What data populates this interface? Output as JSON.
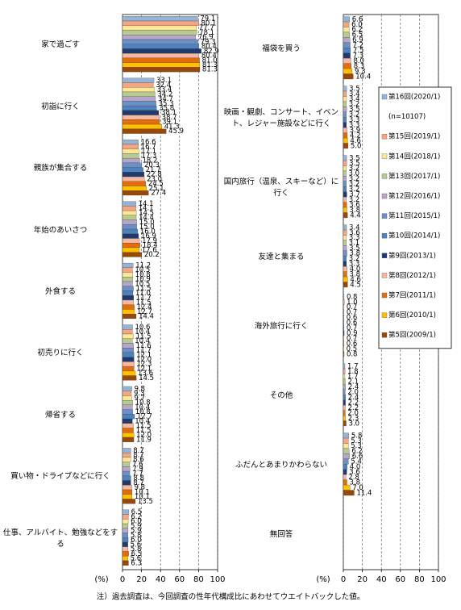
{
  "chart_data": {
    "type": "bar",
    "orientation": "horizontal",
    "categories": [
      "家で過ごす",
      "初詣に行く",
      "親族が集合する",
      "年始のあいさつ",
      "外食する",
      "初売りに行く",
      "帰省する",
      "買い物・ドライブなどに行く",
      "仕事、アルバイト、勉強などをする",
      "福袋を買う",
      "映画・観劇、コンサート、イベント、レジャー施設などに行く",
      "国内旅行（温泉、スキーなど）に行く",
      "友達と集まる",
      "海外旅行に行く",
      "その他",
      "ふだんとあまりかわらない",
      "無回答"
    ],
    "series": [
      {
        "name": "第16回(2020/1)",
        "color": "#95b3d7",
        "values": [
          79.1,
          33.1,
          16.6,
          14.1,
          11.2,
          10.6,
          9.8,
          8.7,
          6.5,
          6.6,
          3.5,
          3.5,
          3.4,
          0.8,
          1.7,
          5.8,
          null
        ],
        "value_labels": [
          "79.1",
          "33.1",
          "16.6",
          "14.1",
          "11.2",
          "10.6",
          "9.8",
          "8.7",
          "6.5",
          "6.6",
          "3.5",
          "3.5",
          "3.4",
          "0.8",
          "1.7",
          "5.8",
          null
        ]
      },
      {
        "name": "第15回(2019/1)",
        "color": "#f4a582",
        "values": [
          80.1,
          32.4,
          16.7,
          14.1,
          10.5,
          10.4,
          9.3,
          8.7,
          6.2,
          6.0,
          3.4,
          3.5,
          3.6,
          1.0,
          1.8,
          5.3,
          null
        ],
        "value_labels": [
          "80.1",
          "32.4",
          "16.7",
          "14.1",
          "10.5",
          "10.4",
          "9.3",
          "8.7",
          "6.2",
          "6.0",
          "3.4",
          "3.5",
          "3.6",
          "1.0",
          "1.8",
          "5.3",
          null
        ]
      },
      {
        "name": "第14回(2018/1)",
        "color": "#ffe699",
        "values": [
          77.7,
          33.4,
          17.1,
          14.5,
          10.8,
          11.5,
          9.7,
          8.6,
          6.0,
          6.2,
          3.4,
          3.2,
          3.3,
          0.7,
          1.7,
          5.3,
          null
        ],
        "value_labels": [
          "77.7",
          "33.4",
          "17.1",
          "14.5",
          "10.8",
          "11.5",
          "9.7",
          "8.6",
          "6.0",
          "6.2",
          "3.4",
          "3.2",
          "3.3",
          "0.7",
          "1.7",
          "5.3",
          null
        ]
      },
      {
        "name": "第13回(2017/1)",
        "color": "#b5cc8e",
        "values": [
          78.1,
          34.2,
          17.3,
          14.4,
          10.9,
          10.4,
          10.8,
          7.6,
          5.9,
          6.5,
          3.2,
          3.0,
          3.1,
          0.7,
          2.1,
          6.2,
          null
        ],
        "value_labels": [
          "78.1",
          "34.2",
          "17.3",
          "14.4",
          "10.9",
          "10.4",
          "10.8",
          "7.6",
          "5.9",
          "6.5",
          "3.2",
          "3.0",
          "3.1",
          "0.7",
          "2.1",
          "6.2",
          null
        ]
      },
      {
        "name": "第12回(2016/1)",
        "color": "#b7a6c9",
        "values": [
          76.9,
          34.7,
          18.2,
          15.0,
          10.5,
          11.6,
          10.4,
          7.9,
          5.9,
          6.9,
          3.5,
          3.2,
          3.5,
          0.6,
          2.4,
          6.6,
          null
        ],
        "value_labels": [
          "76.9",
          "34.7",
          "18.2",
          "15.0",
          "10.5",
          "11.6",
          "10.4",
          "7.9",
          "5.9",
          "6.9",
          "3.5",
          "3.2",
          "3.5",
          "0.6",
          "2.4",
          "6.6",
          null
        ]
      },
      {
        "name": "第11回(2015/1)",
        "color": "#6b8fc7",
        "values": [
          79.3,
          35.3,
          20.3,
          15.0,
          11.5,
          11.7,
          10.8,
          7.7,
          5.8,
          7.2,
          3.2,
          3.2,
          3.8,
          0.6,
          2.0,
          5.4,
          null
        ],
        "value_labels": [
          "79.3",
          "35.3",
          "20.3",
          "15.0",
          "11.5",
          "11.7",
          "10.8",
          "7.7",
          "5.8",
          "7.2",
          "3.2",
          "3.2",
          "3.8",
          "0.6",
          "2.0",
          "5.4",
          null
        ]
      },
      {
        "name": "第10回(2014/1)",
        "color": "#4f81bd",
        "values": [
          80.4,
          35.8,
          21.7,
          16.0,
          11.0,
          12.1,
          12.7,
          8.8,
          6.0,
          7.5,
          3.3,
          3.2,
          3.2,
          0.7,
          2.4,
          4.0,
          null
        ],
        "value_labels": [
          "80.4",
          "35.8",
          "21.7",
          "16.0",
          "11.0",
          "12.1",
          "12.7",
          "8.8",
          "6.0",
          "7.5",
          "3.3",
          "3.2",
          "3.2",
          "0.7",
          "2.4",
          "4.0",
          null
        ]
      },
      {
        "name": "第9回(2013/1)",
        "color": "#1f3a6e",
        "values": [
          82.9,
          38.1,
          22.8,
          16.9,
          11.7,
          12.0,
          10.4,
          8.7,
          5.6,
          7.3,
          3.3,
          3.7,
          3.3,
          0.9,
          2.2,
          3.6,
          null
        ],
        "value_labels": [
          "82.9",
          "38.1",
          "22.8",
          "16.9",
          "11.7",
          "12.0",
          "10.4",
          "8.7",
          "5.6",
          "7.3",
          "3.3",
          "3.7",
          "3.3",
          "0.9",
          "2.2",
          "3.6",
          null
        ]
      },
      {
        "name": "第8回(2012/1)",
        "color": "#f8b7a0",
        "values": [
          80.4,
          38.7,
          23.0,
          17.9,
          11.5,
          12.3,
          11.5,
          9.8,
          5.8,
          8.0,
          3.9,
          3.2,
          4.0,
          0.7,
          2.2,
          2.8,
          null
        ],
        "value_labels": [
          "80.4",
          "38.7",
          "23.0",
          "17.9",
          "11.5",
          "12.3",
          "11.5",
          "9.8",
          "5.8",
          "8.0",
          "3.9",
          "3.2",
          "4.0",
          "0.7",
          "2.2",
          "2.8",
          null
        ]
      },
      {
        "name": "第7回(2011/1)",
        "color": "#e46c0a",
        "values": [
          81.0,
          39.1,
          24.5,
          18.4,
          12.4,
          12.1,
          11.5,
          10.1,
          6.5,
          8.3,
          4.2,
          3.6,
          3.8,
          0.6,
          2.0,
          3.8,
          null
        ],
        "value_labels": [
          "81.0",
          "39.1",
          "24.5",
          "18.4",
          "12.4",
          "12.1",
          "11.5",
          "10.1",
          "6.5",
          "8.3",
          "4.2",
          "3.6",
          "3.8",
          "0.6",
          "2.0",
          "3.8",
          null
        ]
      },
      {
        "name": "第6回(2010/1)",
        "color": "#ffc000",
        "values": [
          81.3,
          41.3,
          25.1,
          17.6,
          12.7,
          13.6,
          12.0,
          10.1,
          5.6,
          9.3,
          4.6,
          3.8,
          4.6,
          0.5,
          2.3,
          7.0,
          null
        ],
        "value_labels": [
          "81.3",
          "41.3",
          "25.1",
          "17.6",
          "12.7",
          "13.6",
          "12.0",
          "10.1",
          "5.6",
          "9.3",
          "4.6",
          "3.8",
          "4.6",
          "0.5",
          "2.3",
          "7.0",
          null
        ]
      },
      {
        "name": "第5回(2009/1)",
        "color": "#984807",
        "values": [
          81.3,
          45.9,
          27.4,
          20.2,
          14.4,
          14.5,
          11.9,
          13.5,
          6.3,
          10.4,
          5.0,
          4.4,
          4.5,
          0.8,
          3.0,
          11.4,
          null
        ],
        "value_labels": [
          "81.3",
          "45.9",
          "27.4",
          "20.2",
          "14.4",
          "14.5",
          "11.9",
          "13.5",
          "6.3",
          "10.4",
          "5.0",
          "4.4",
          "4.5",
          "0.8",
          "3.0",
          "11.4",
          null
        ]
      }
    ],
    "legend_note": "(n=10107)",
    "xlim": [
      0,
      100
    ],
    "xticks": [
      0,
      20,
      40,
      60,
      80,
      100
    ],
    "x_label": "(%)",
    "grid": true,
    "note": "注）過去調査は、今回調査の性年代構成比にあわせてウエイトバックした値。"
  }
}
